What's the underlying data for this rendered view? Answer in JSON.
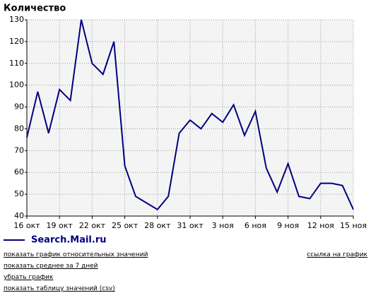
{
  "chart_data": {
    "type": "line",
    "title": "Количество",
    "categories": [
      "16 окт",
      null,
      null,
      "19 окт",
      null,
      null,
      "22 окт",
      null,
      null,
      "25 окт",
      null,
      null,
      "28 окт",
      null,
      null,
      "31 окт",
      null,
      null,
      "3 ноя",
      null,
      null,
      "6 ноя",
      null,
      null,
      "9 ноя",
      null,
      null,
      "12 ноя",
      null,
      null,
      "15 ноя"
    ],
    "series": [
      {
        "name": "Search.Mail.ru",
        "color": "#000080",
        "values": [
          76,
          97,
          78,
          98,
          93,
          130,
          110,
          105,
          120,
          63,
          49,
          46,
          43,
          49,
          78,
          84,
          80,
          87,
          83,
          91,
          77,
          88,
          62,
          51,
          64,
          49,
          48,
          55,
          55,
          54,
          43
        ]
      }
    ],
    "ylim": [
      40,
      130
    ],
    "yticks": [
      40,
      50,
      60,
      70,
      80,
      90,
      100,
      110,
      120,
      130
    ],
    "grid": true
  },
  "links": [
    "показать график относительных значений",
    "показать среднее за 7 дней",
    "убрать график",
    "показать таблицу значений (csv)"
  ],
  "share_link": "ссылка на график"
}
